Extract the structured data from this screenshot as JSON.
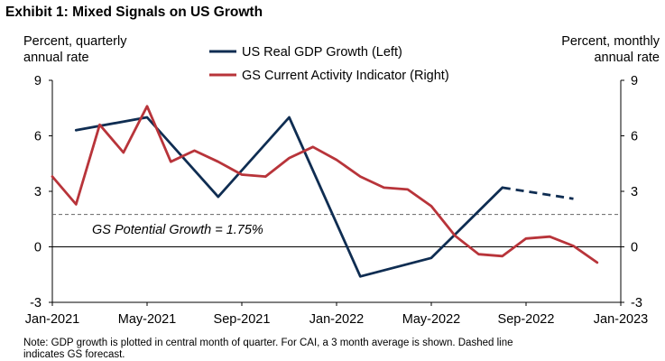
{
  "title": "Exhibit 1: Mixed Signals on US Growth",
  "note_lines": [
    "Note: GDP growth is plotted in central month of quarter. For CAI, a 3 month average is shown. Dashed line",
    "indicates GS forecast."
  ],
  "chart_data": {
    "type": "line",
    "title": "Exhibit 1: Mixed Signals on US Growth",
    "left_axis_label": [
      "Percent, quarterly",
      "annual rate"
    ],
    "right_axis_label": [
      "Percent, monthly",
      "annual rate"
    ],
    "left_ylim": [
      -3,
      9
    ],
    "right_ylim": [
      -3,
      9
    ],
    "yticks": [
      -3,
      0,
      3,
      6,
      9
    ],
    "x_range": [
      "2021-01",
      "2023-01"
    ],
    "x_ticks": [
      {
        "date": "2021-01",
        "label": "Jan-2021"
      },
      {
        "date": "2021-05",
        "label": "May-2021"
      },
      {
        "date": "2021-09",
        "label": "Sep-2021"
      },
      {
        "date": "2022-01",
        "label": "Jan-2022"
      },
      {
        "date": "2022-05",
        "label": "May-2022"
      },
      {
        "date": "2022-09",
        "label": "Sep-2022"
      },
      {
        "date": "2023-01",
        "label": "Jan-2023"
      }
    ],
    "legend_position": "top-center",
    "series": [
      {
        "name": "US Real GDP Growth (Left)",
        "axis": "left",
        "color": "#0f2d52",
        "points": [
          {
            "x": "2021-02",
            "y": 6.3
          },
          {
            "x": "2021-05",
            "y": 7.0
          },
          {
            "x": "2021-08",
            "y": 2.7
          },
          {
            "x": "2021-11",
            "y": 7.0
          },
          {
            "x": "2022-02",
            "y": -1.6
          },
          {
            "x": "2022-05",
            "y": -0.6
          },
          {
            "x": "2022-08",
            "y": 3.2
          }
        ],
        "forecast_points": [
          {
            "x": "2022-08",
            "y": 3.2
          },
          {
            "x": "2022-11",
            "y": 2.6
          }
        ]
      },
      {
        "name": "GS Current Activity Indicator (Right)",
        "axis": "right",
        "color": "#b8343a",
        "points": [
          {
            "x": "2021-01",
            "y": 3.8
          },
          {
            "x": "2021-02",
            "y": 2.3
          },
          {
            "x": "2021-03",
            "y": 6.6
          },
          {
            "x": "2021-04",
            "y": 5.1
          },
          {
            "x": "2021-05",
            "y": 7.6
          },
          {
            "x": "2021-06",
            "y": 4.6
          },
          {
            "x": "2021-07",
            "y": 5.2
          },
          {
            "x": "2021-08",
            "y": 4.6
          },
          {
            "x": "2021-09",
            "y": 3.9
          },
          {
            "x": "2021-10",
            "y": 3.8
          },
          {
            "x": "2021-11",
            "y": 4.8
          },
          {
            "x": "2021-12",
            "y": 5.4
          },
          {
            "x": "2022-01",
            "y": 4.7
          },
          {
            "x": "2022-02",
            "y": 3.8
          },
          {
            "x": "2022-03",
            "y": 3.2
          },
          {
            "x": "2022-04",
            "y": 3.1
          },
          {
            "x": "2022-05",
            "y": 2.2
          },
          {
            "x": "2022-06",
            "y": 0.6
          },
          {
            "x": "2022-07",
            "y": -0.4
          },
          {
            "x": "2022-08",
            "y": -0.5
          },
          {
            "x": "2022-09",
            "y": 0.45
          },
          {
            "x": "2022-10",
            "y": 0.55
          },
          {
            "x": "2022-11",
            "y": 0.05
          },
          {
            "x": "2022-12",
            "y": -0.85
          }
        ]
      }
    ],
    "reference_line": {
      "y": 1.75,
      "label": "GS Potential Growth = 1.75%",
      "style": "dashed"
    },
    "zero_line": true,
    "grid": false
  }
}
